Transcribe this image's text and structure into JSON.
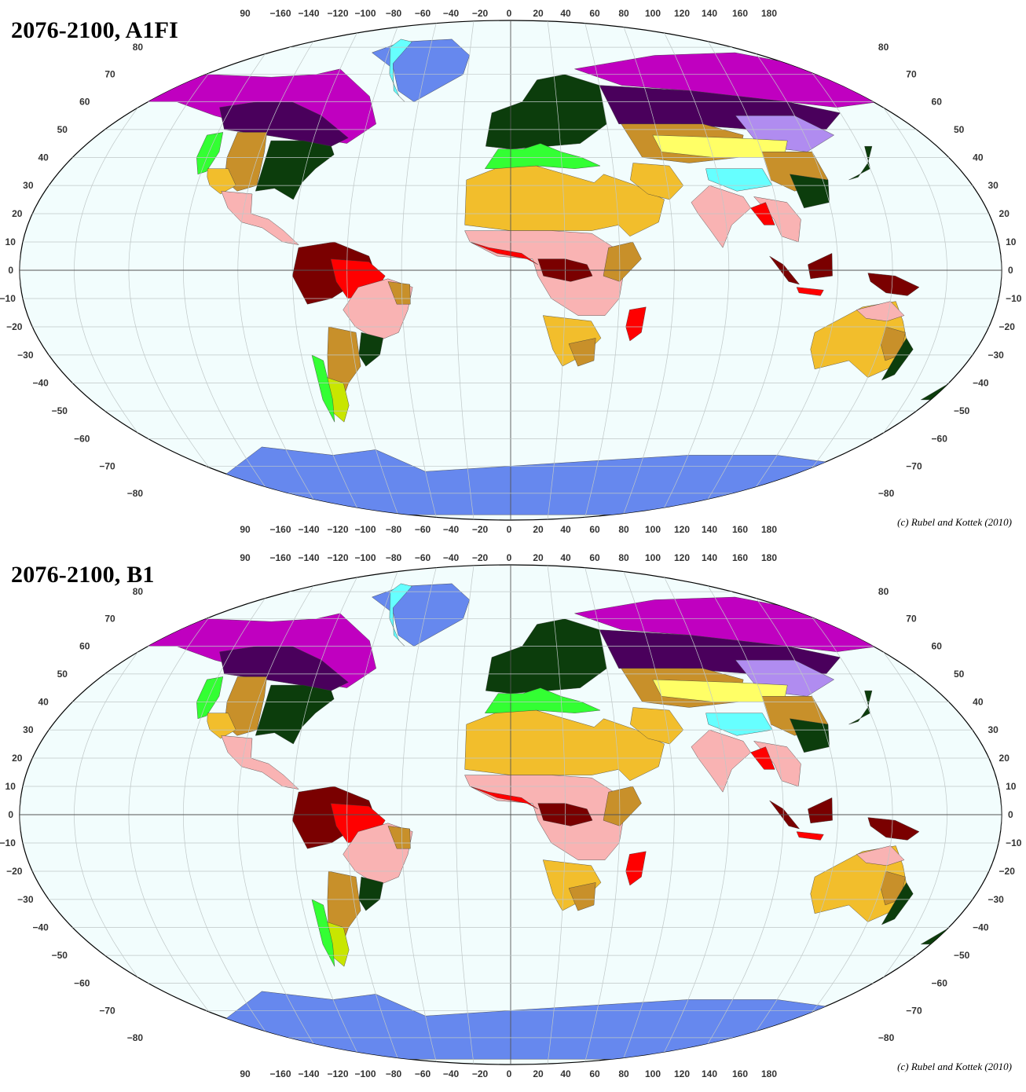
{
  "panels": [
    {
      "title": "2076-2100, A1FI",
      "credit": "(c) Rubel and Kottek (2010)"
    },
    {
      "title": "2076-2100, B1",
      "credit": "(c) Rubel and Kottek (2010)"
    }
  ],
  "lon_ticks": [
    "90",
    "−160",
    "−140",
    "−120",
    "−100",
    "−80",
    "−60",
    "−40",
    "−20",
    "0",
    "20",
    "40",
    "60",
    "80",
    "100",
    "120",
    "140",
    "160",
    "180"
  ],
  "lat_ticks_left": [
    "80",
    "70",
    "60",
    "50",
    "40",
    "30",
    "20",
    "10",
    "0",
    "−10",
    "−20",
    "−30",
    "−40",
    "−50",
    "−60",
    "−70",
    "−80"
  ],
  "lat_ticks_right": [
    "80",
    "70",
    "60",
    "50",
    "40",
    "30",
    "20",
    "10",
    "0",
    "−10",
    "−20",
    "−30",
    "−40",
    "−50",
    "−60",
    "−70",
    "−80"
  ],
  "colors": {
    "ocean": "#f2fdfd",
    "tropical_rainforest": "#7a0000",
    "tropical_monsoon": "#ff0000",
    "tropical_savanna": "#f9b3b3",
    "desert_hot": "#f2be2c",
    "steppe": "#c8902a",
    "mediterranean": "#c8e600",
    "humid_temperate": "#0c3d0c",
    "oceanic": "#1a6b1a",
    "mediterranean_green": "#33ff33",
    "cold_continental": "#4a005c",
    "subarctic": "#c000c0",
    "dry_winter_cold": "#b08cf0",
    "cold_steppe": "#ffff66",
    "tundra": "#66ffff",
    "ice_cap": "#6688ee"
  }
}
